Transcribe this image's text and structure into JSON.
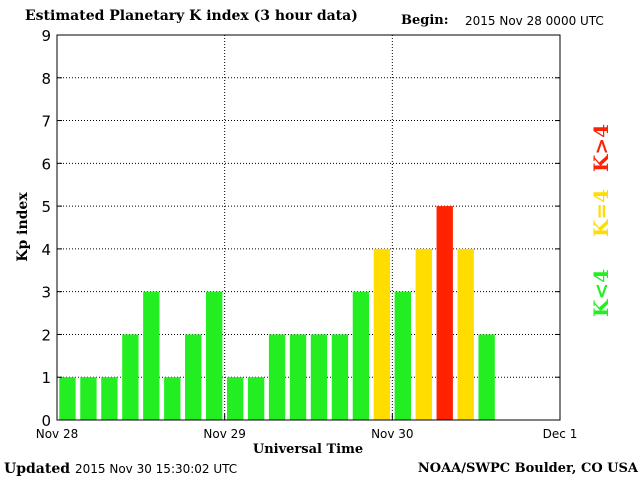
{
  "header": {
    "title": "Estimated Planetary K index (3 hour data)",
    "begin_label": "Begin:",
    "begin_value": "2015 Nov 28 0000 UTC"
  },
  "footer": {
    "updated_label": "Updated",
    "updated_value": "2015 Nov 30 15:30:02 UTC",
    "credit": "NOAA/SWPC Boulder, CO USA"
  },
  "legend": [
    {
      "label": "K<4",
      "color": "#22ee22"
    },
    {
      "label": "K=4",
      "color": "#ffdd00"
    },
    {
      "label": "K>4",
      "color": "#ff2200"
    }
  ],
  "chart_data": {
    "type": "bar",
    "title": "Estimated Planetary K index (3 hour data)",
    "xlabel": "Universal Time",
    "ylabel": "Kp index",
    "ylim": [
      0,
      9
    ],
    "yticks": [
      0,
      1,
      2,
      3,
      4,
      5,
      6,
      7,
      8,
      9
    ],
    "xticks": [
      "Nov 28",
      "Nov 29",
      "Nov 30",
      "Dec 1"
    ],
    "grid": true,
    "slots_per_day": 8,
    "colors": {
      "low": "#22ee22",
      "equal": "#ffdd00",
      "high": "#ff2200"
    },
    "series": [
      {
        "values": [
          1,
          1,
          1,
          2,
          3,
          1,
          2,
          3,
          1,
          1,
          2,
          2,
          2,
          2,
          3,
          4,
          3,
          4,
          5,
          4,
          2
        ]
      }
    ]
  }
}
